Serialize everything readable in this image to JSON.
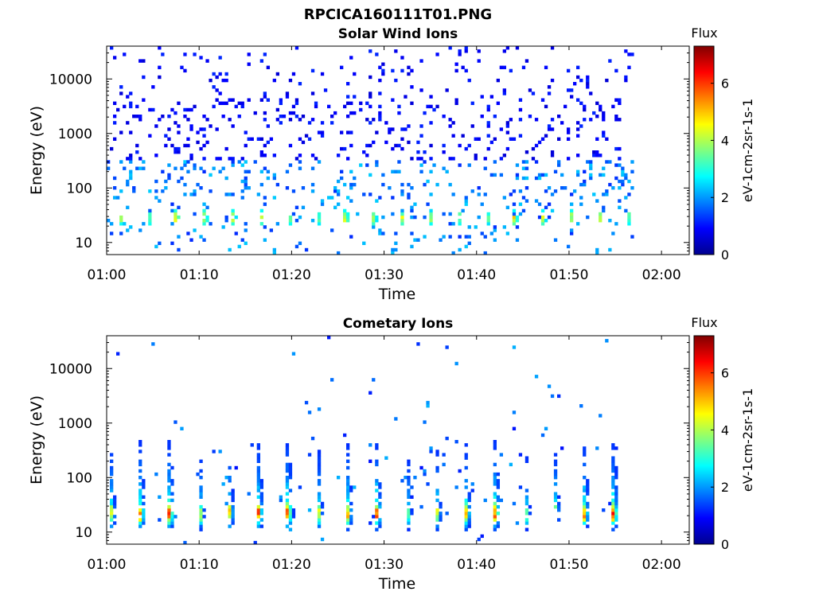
{
  "figure_title": "RPCICA160111T01.PNG",
  "chart_data": [
    {
      "type": "heatmap",
      "title": "Solar Wind Ions",
      "xlabel": "Time",
      "ylabel": "Energy (eV)",
      "x_ticks": [
        "01:00",
        "01:10",
        "01:20",
        "01:30",
        "01:40",
        "01:50",
        "02:00"
      ],
      "x_range": [
        "01:00",
        "02:03"
      ],
      "data_end": "01:57",
      "y_scale": "log",
      "y_ticks": [
        "10",
        "100",
        "1000",
        "10000"
      ],
      "y_range": [
        6,
        40000
      ],
      "colorbar": {
        "title": "Flux",
        "label": "eV-1cm-2sr-1s-1",
        "ticks": [
          "0",
          "2",
          "4",
          "6"
        ],
        "range": [
          0,
          7.3
        ]
      },
      "pattern": "sparse scattered counts up to ~20 keV; enhanced bursts near 20-40 eV about every 3 min"
    },
    {
      "type": "heatmap",
      "title": "Cometary Ions",
      "xlabel": "Time",
      "ylabel": "Energy (eV)",
      "x_ticks": [
        "01:00",
        "01:10",
        "01:20",
        "01:30",
        "01:40",
        "01:50",
        "02:00"
      ],
      "x_range": [
        "01:00",
        "02:03"
      ],
      "data_end": "01:57",
      "y_scale": "log",
      "y_ticks": [
        "10",
        "100",
        "1000",
        "10000"
      ],
      "y_range": [
        6,
        40000
      ],
      "colorbar": {
        "title": "Flux",
        "label": "eV-1cm-2sr-1s-1",
        "ticks": [
          "0",
          "2",
          "4",
          "6"
        ],
        "range": [
          0,
          7.3
        ]
      },
      "pattern": "periodic bursts about every 3.2 min, peak flux ~6-7 near 15-40 eV, tails extending to ~1 keV"
    }
  ]
}
